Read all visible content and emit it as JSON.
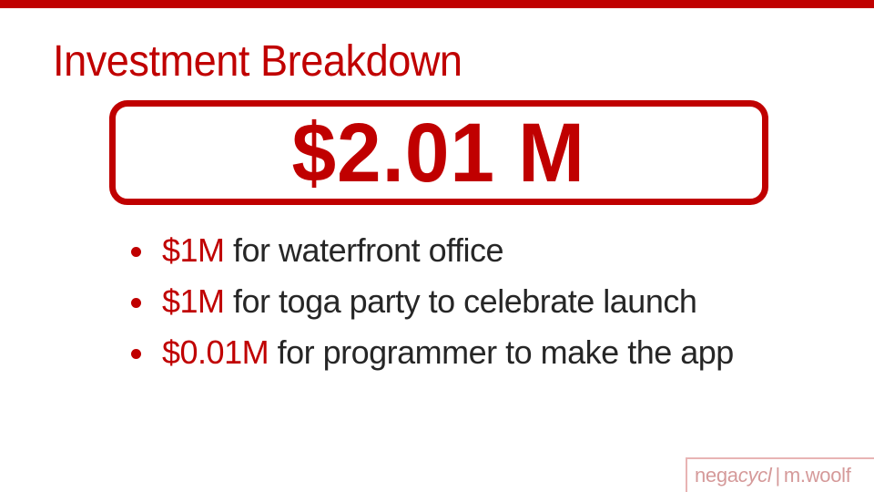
{
  "slide": {
    "title": "Investment Breakdown",
    "total_amount": "$2.01 M"
  },
  "bullets": [
    {
      "amount": "$1M",
      "text": " for waterfront office"
    },
    {
      "amount": "$1M",
      "text": " for toga party to celebrate launch"
    },
    {
      "amount": "$0.01M",
      "text": " for programmer to make the app"
    }
  ],
  "footer": {
    "brand_plain": "nega",
    "brand_italic": "cycl",
    "separator": "|",
    "author": "m.woolf"
  },
  "colors": {
    "accent": "#c00000",
    "body_text": "#262626",
    "footer_text": "#d59a9a"
  }
}
